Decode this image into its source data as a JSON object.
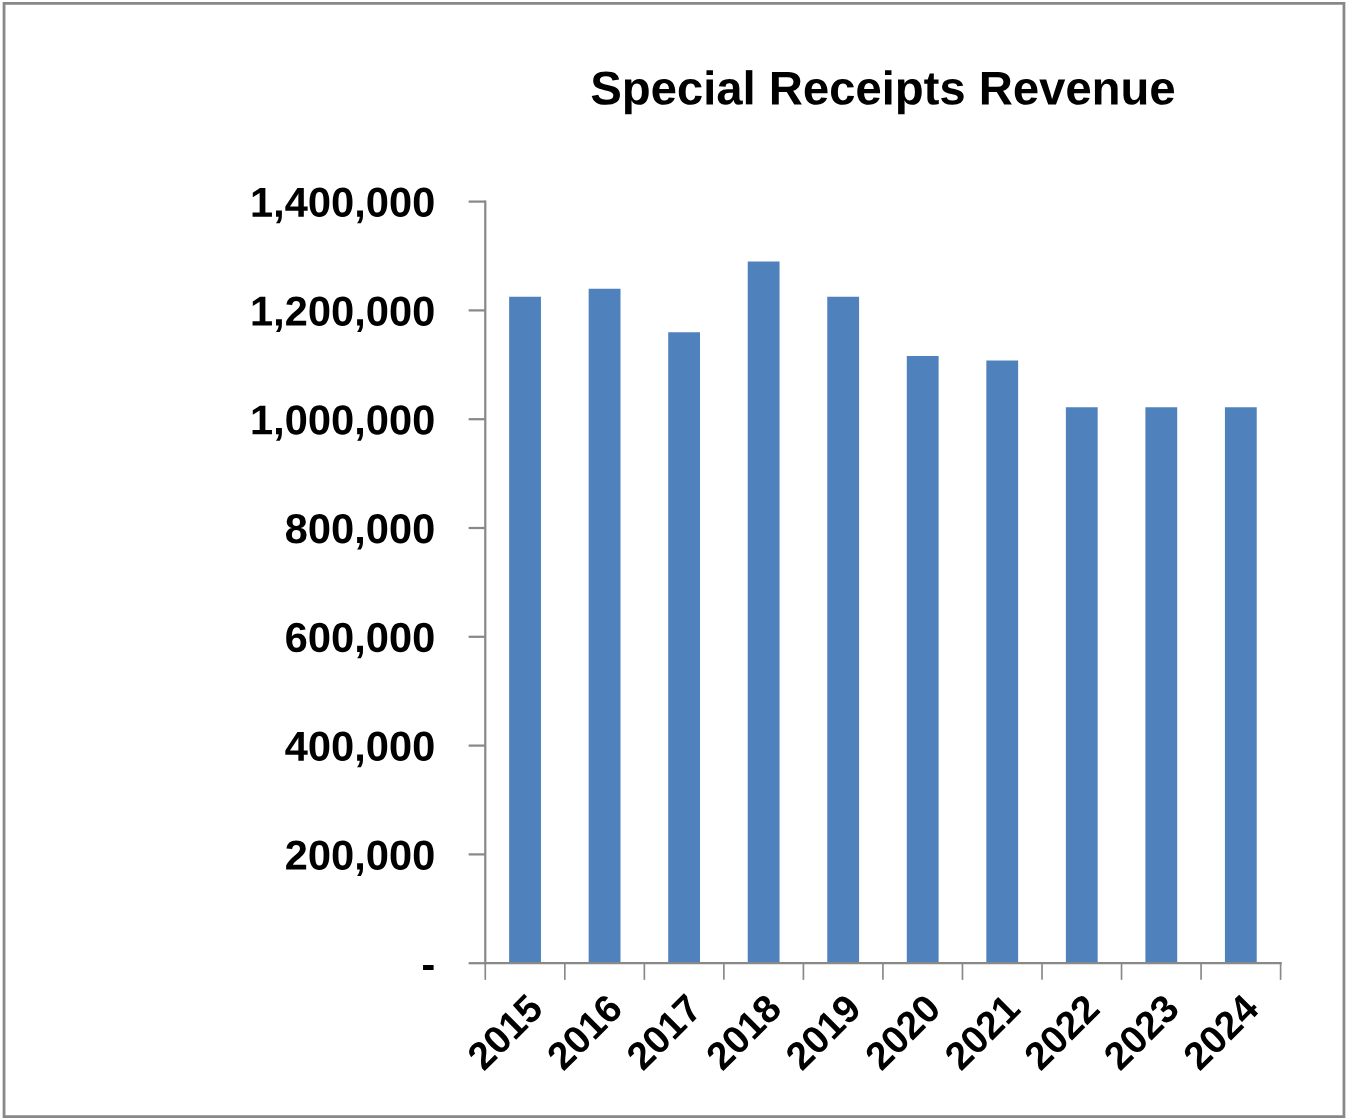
{
  "chart_data": {
    "type": "bar",
    "title": "Special Receipts Revenue",
    "categories": [
      "2015",
      "2016",
      "2017",
      "2018",
      "2019",
      "2020",
      "2021",
      "2022",
      "2023",
      "2024"
    ],
    "values": [
      1225000,
      1240000,
      1160000,
      1290000,
      1225000,
      1116000,
      1108000,
      1022000,
      1022000,
      1022000
    ],
    "color": "#4f81bd",
    "ylim": [
      0,
      1400000
    ],
    "yticks": [
      {
        "value": 0,
        "label": "-"
      },
      {
        "value": 200000,
        "label": "200,000"
      },
      {
        "value": 400000,
        "label": "400,000"
      },
      {
        "value": 600000,
        "label": "600,000"
      },
      {
        "value": 800000,
        "label": "800,000"
      },
      {
        "value": 1000000,
        "label": "1,000,000"
      },
      {
        "value": 1200000,
        "label": "1,200,000"
      },
      {
        "value": 1400000,
        "label": "1,400,000"
      }
    ],
    "grid": false
  }
}
